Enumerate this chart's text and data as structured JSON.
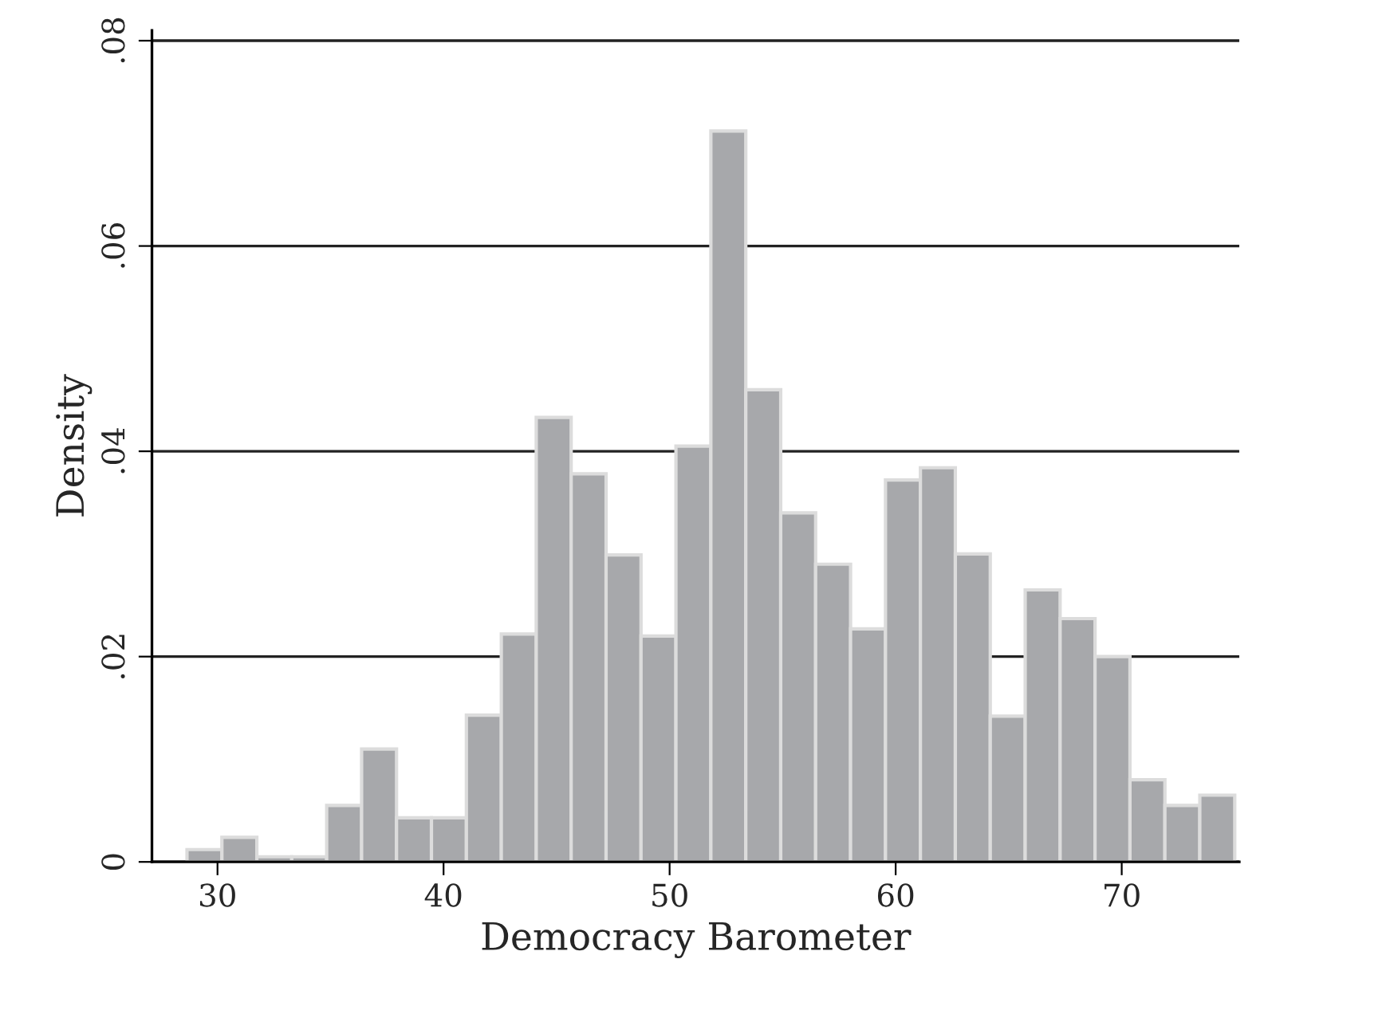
{
  "chart_data": {
    "type": "histogram",
    "xlabel": "Democracy Barometer",
    "ylabel": "Density",
    "bins": [
      28.65,
      30.195,
      31.74,
      33.285,
      34.83,
      36.375,
      37.92,
      39.465,
      41.01,
      42.555,
      44.1,
      45.645,
      47.19,
      48.735,
      50.28,
      51.825,
      53.37,
      54.915,
      56.46,
      58.005,
      59.55,
      61.095,
      62.64,
      64.185,
      65.73,
      67.275,
      68.82,
      70.365,
      71.91,
      73.455,
      75.0
    ],
    "values": [
      0.0012,
      0.0024,
      0.0005,
      0.0005,
      0.0055,
      0.011,
      0.0043,
      0.0043,
      0.0143,
      0.0222,
      0.0433,
      0.0378,
      0.0299,
      0.022,
      0.0405,
      0.0712,
      0.046,
      0.034,
      0.029,
      0.0227,
      0.0372,
      0.0384,
      0.03,
      0.0142,
      0.0265,
      0.0237,
      0.02,
      0.008,
      0.0055,
      0.0065
    ],
    "color": "#a7a8ab",
    "xlim": [
      27.1,
      75.2
    ],
    "ylim": [
      0,
      0.081
    ],
    "xticks": [
      30,
      40,
      50,
      60,
      70
    ],
    "yticks": [
      {
        "value": 0,
        "label": "0"
      },
      {
        "value": 0.02,
        "label": ".02"
      },
      {
        "value": 0.04,
        "label": ".04"
      },
      {
        "value": 0.06,
        "label": ".06"
      },
      {
        "value": 0.08,
        "label": ".08"
      }
    ],
    "grid": "y"
  }
}
